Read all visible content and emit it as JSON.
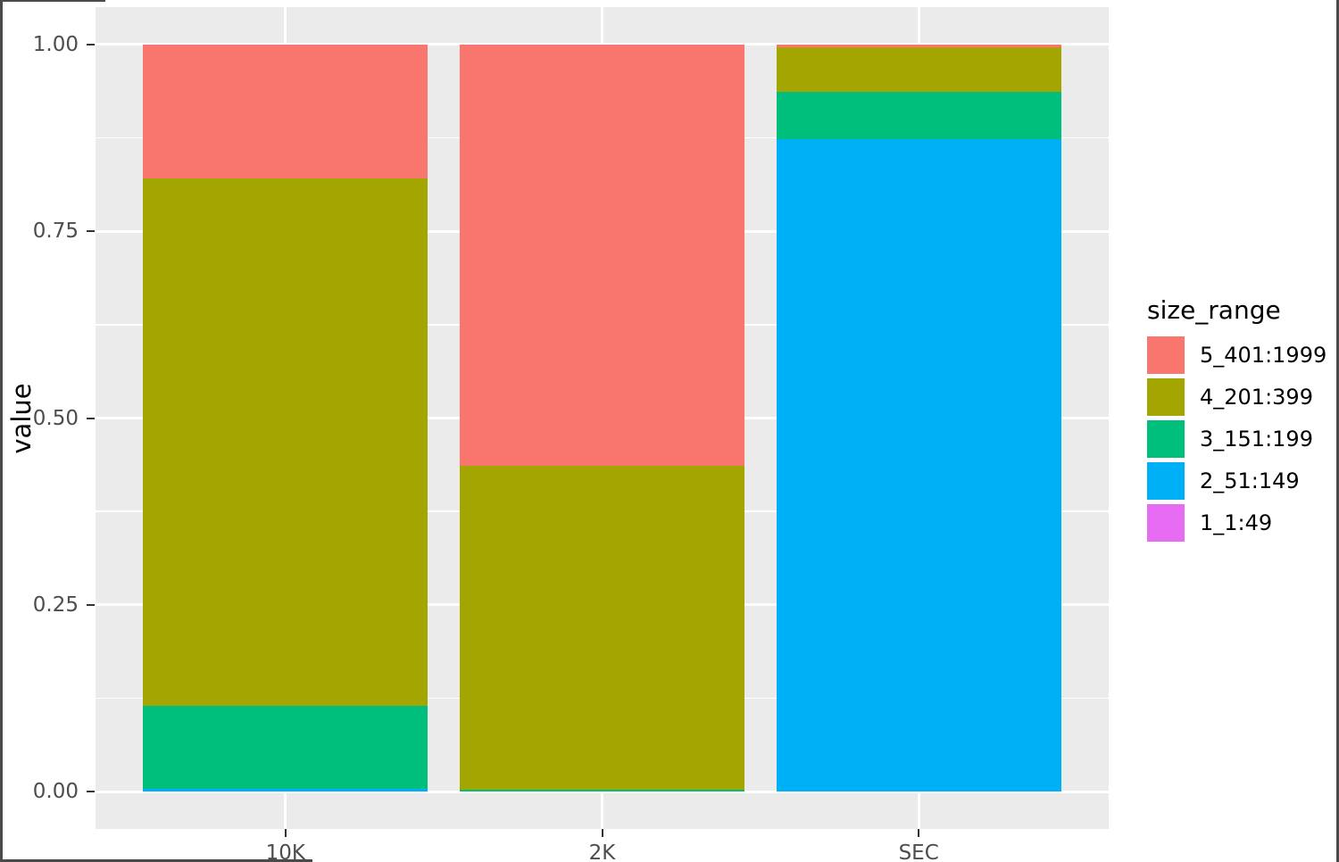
{
  "figure": {
    "background": "#FFFFFF",
    "panel_background": "#EBEBEB",
    "grid_color": "#FFFFFF",
    "tick_mark_color": "#333333",
    "axis_text_color": "#4D4D4D",
    "title_text_color": "#000000",
    "window_border_color": "#4A4A4A"
  },
  "chart_data": {
    "type": "bar",
    "stacked": true,
    "normalized": true,
    "orientation": "vertical",
    "title": "",
    "xlabel": "",
    "ylabel": "value",
    "ylim": [
      0,
      1
    ],
    "grid": true,
    "legend_position": "right",
    "legend_title": "size_range",
    "categories": [
      "10K",
      "2K",
      "SEC"
    ],
    "y_ticks": [
      {
        "label": "1.00",
        "value": 1.0
      },
      {
        "label": "0.75",
        "value": 0.75
      },
      {
        "label": "0.50",
        "value": 0.5
      },
      {
        "label": "0.25",
        "value": 0.25
      },
      {
        "label": "0.00",
        "value": 0.0
      }
    ],
    "series": [
      {
        "name": "5_401:1999",
        "color": "#F8766D",
        "values": [
          0.179,
          0.564,
          0.004
        ]
      },
      {
        "name": "4_201:399",
        "color": "#A3A500",
        "values": [
          0.706,
          0.434,
          0.06
        ]
      },
      {
        "name": "3_151:199",
        "color": "#00BF7D",
        "values": [
          0.111,
          0.002,
          0.063
        ]
      },
      {
        "name": "2_51:149",
        "color": "#00B0F6",
        "values": [
          0.004,
          0.0,
          0.873
        ]
      },
      {
        "name": "1_1:49",
        "color": "#E76BF3",
        "values": [
          0.0,
          0.0,
          0.0
        ]
      }
    ]
  }
}
